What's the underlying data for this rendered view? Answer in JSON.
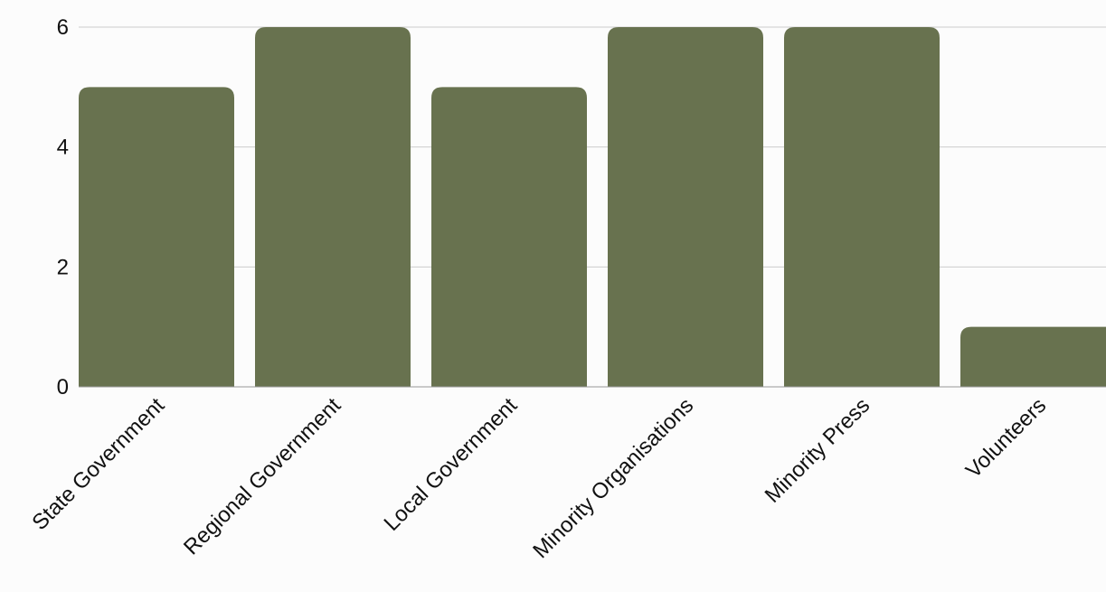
{
  "chart_data": {
    "type": "bar",
    "title": "",
    "xlabel": "",
    "ylabel": "",
    "categories": [
      "State Government",
      "Regional Government",
      "Local Government",
      "Minority Organisations",
      "Minority Press",
      "Volunteers"
    ],
    "values": [
      5,
      6,
      5,
      6,
      6,
      1
    ],
    "ylim": [
      0,
      6
    ],
    "yticks": [
      0,
      2,
      4,
      6
    ],
    "grid": true,
    "legend": "none",
    "bar_color": "#68724f",
    "grid_color": "#cccccc",
    "axis_color": "#999999",
    "background": "#fcfcfc"
  }
}
